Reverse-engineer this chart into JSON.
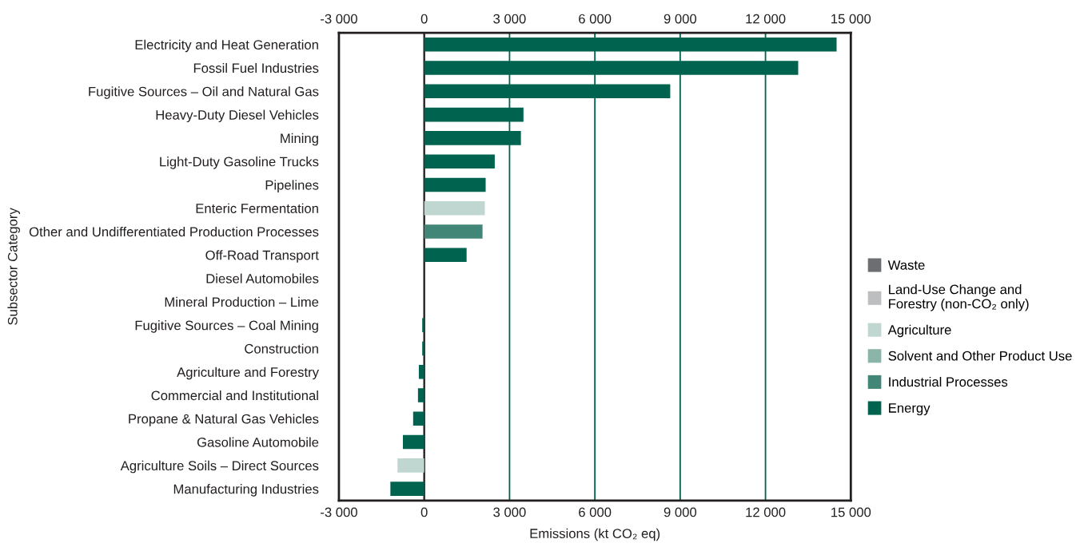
{
  "chart_data": {
    "type": "bar",
    "orientation": "horizontal",
    "xlabel": "Emissions (kt CO₂ eq)",
    "ylabel": "Subsector Category",
    "categories": [
      "Electricity and Heat Generation",
      "Fossil Fuel Industries",
      "Fugitive Sources – Oil and Natural Gas",
      "Heavy-Duty Diesel Vehicles",
      "Mining",
      "Light-Duty Gasoline Trucks",
      "Pipelines",
      "Enteric Fermentation",
      "Other and Undifferentiated Production Processes",
      "Off-Road Transport",
      "Diesel Automobiles",
      "Mineral Production – Lime",
      "Fugitive Sources – Coal Mining",
      "Construction",
      "Agriculture and Forestry",
      "Commercial and Institutional",
      "Propane & Natural Gas Vehicles",
      "Gasoline Automobile",
      "Agriculture Soils – Direct Sources",
      "Manufacturing Industries"
    ],
    "series": [
      {
        "name": "Waste",
        "color": "#6d6e71",
        "values": [
          null,
          null,
          null,
          null,
          null,
          null,
          null,
          null,
          null,
          null,
          null,
          null,
          null,
          null,
          null,
          null,
          null,
          null,
          null,
          null
        ]
      },
      {
        "name": "Land-Use Change and\nForestry (non-CO₂ only)",
        "color": "#bcbec0",
        "values": [
          null,
          null,
          null,
          null,
          null,
          null,
          null,
          null,
          null,
          null,
          null,
          null,
          null,
          null,
          null,
          null,
          null,
          null,
          null,
          null
        ]
      },
      {
        "name": "Agriculture",
        "color": "#bfd7d0",
        "values": [
          null,
          null,
          null,
          null,
          null,
          null,
          null,
          2130,
          null,
          null,
          null,
          null,
          null,
          null,
          null,
          null,
          null,
          null,
          -940,
          null
        ]
      },
      {
        "name": "Solvent and Other Product Use",
        "color": "#8ab5a8",
        "values": [
          null,
          null,
          null,
          null,
          null,
          null,
          null,
          null,
          null,
          null,
          null,
          null,
          null,
          null,
          null,
          null,
          null,
          null,
          null,
          null
        ]
      },
      {
        "name": "Industrial Processes",
        "color": "#428677",
        "values": [
          null,
          null,
          null,
          null,
          null,
          null,
          null,
          null,
          2050,
          null,
          null,
          null,
          null,
          null,
          null,
          null,
          null,
          null,
          null,
          null
        ]
      },
      {
        "name": "Energy",
        "color": "#00634f",
        "values": [
          14500,
          13150,
          8650,
          3490,
          3400,
          2480,
          2160,
          null,
          null,
          1490,
          null,
          null,
          -70,
          -70,
          -190,
          -220,
          -390,
          -750,
          null,
          -1190
        ]
      }
    ],
    "xlim": [
      -3000,
      15000
    ],
    "xticks": [
      {
        "value": -3000,
        "label": "-3 000"
      },
      0,
      {
        "value": 3000,
        "label": "3 000"
      },
      {
        "value": 6000,
        "label": "6 000"
      },
      {
        "value": 9000,
        "label": "9 000"
      },
      {
        "value": 12000,
        "label": "12 000"
      },
      {
        "value": 15000,
        "label": "15 000"
      }
    ],
    "x2lim": [
      -3000,
      15000
    ],
    "x2ticks": [
      {
        "value": -3000,
        "label": "-3 000"
      },
      0,
      {
        "value": 3000,
        "label": "3 000"
      },
      {
        "value": 6000,
        "label": "6 000"
      },
      {
        "value": 9000,
        "label": "9 000"
      },
      {
        "value": 12000,
        "label": "12 000"
      },
      {
        "value": 15000,
        "label": "15 000"
      }
    ],
    "ref_lines": [
      {
        "axis": "x",
        "value": 0,
        "color": "#231f20"
      }
    ],
    "grid": "x",
    "legend": "right"
  }
}
